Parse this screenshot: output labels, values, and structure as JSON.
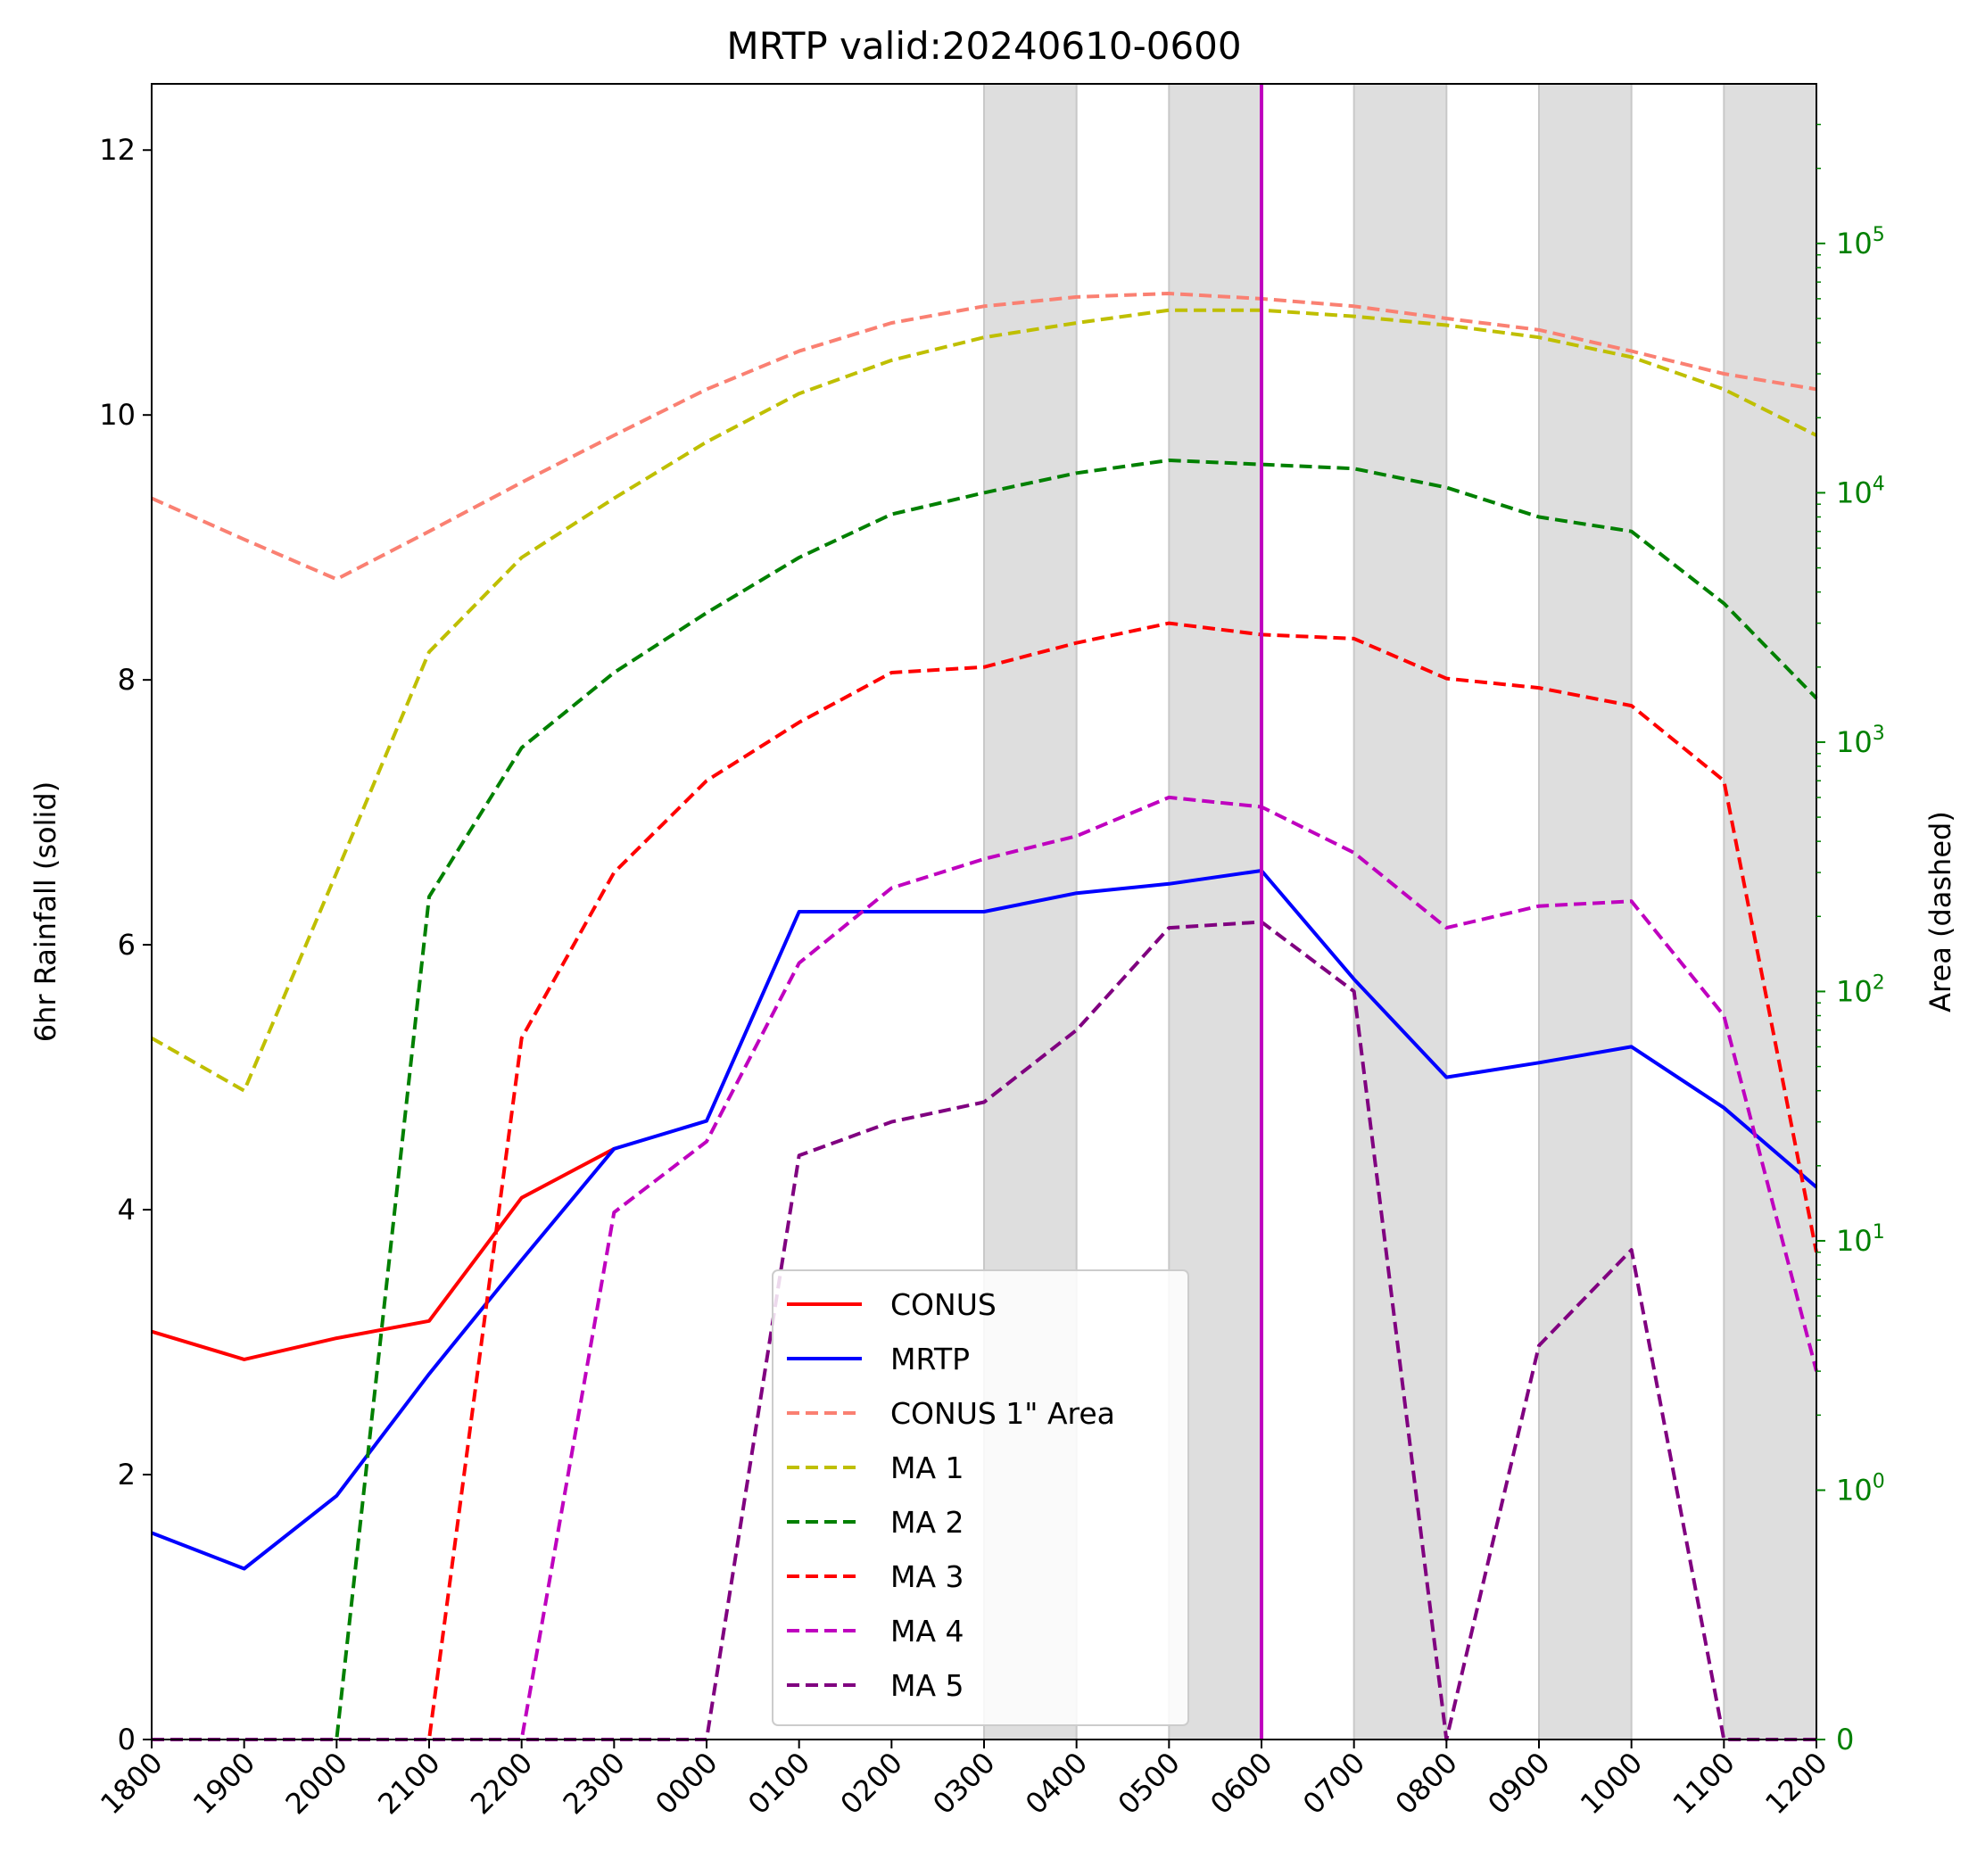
{
  "chart_data": {
    "type": "line",
    "title": "MRTP valid:20240610-0600",
    "ylabel": "6hr Rainfall (solid)",
    "y2label": "Area (dashed)",
    "x": [
      "1800",
      "1900",
      "2000",
      "2100",
      "2200",
      "2300",
      "0000",
      "0100",
      "0200",
      "0300",
      "0400",
      "0500",
      "0600",
      "0700",
      "0800",
      "0900",
      "1000",
      "1100",
      "1200"
    ],
    "ylim": [
      0,
      12.5
    ],
    "yticks": [
      "0",
      "2",
      "4",
      "6",
      "8",
      "10",
      "12"
    ],
    "y2_scale": "symlog",
    "y2ticks": [
      {
        "value": 0,
        "base": "0",
        "exp": ""
      },
      {
        "value": 1,
        "base": "10",
        "exp": "0"
      },
      {
        "value": 10,
        "base": "10",
        "exp": "1"
      },
      {
        "value": 100,
        "base": "10",
        "exp": "2"
      },
      {
        "value": 1000,
        "base": "10",
        "exp": "3"
      },
      {
        "value": 10000,
        "base": "10",
        "exp": "4"
      },
      {
        "value": 100000,
        "base": "10",
        "exp": "5"
      }
    ],
    "y2_color": "#008000",
    "shaded_spans": [
      [
        "0300",
        "0400"
      ],
      [
        "0500",
        "0600"
      ],
      [
        "0700",
        "0800"
      ],
      [
        "0900",
        "1000"
      ],
      [
        "1100",
        "1200"
      ]
    ],
    "vertical_line": {
      "x": "0600",
      "color": "#bf00bf"
    },
    "legend_position": "lower center",
    "series": [
      {
        "name": "CONUS",
        "axis": "left",
        "style": "solid",
        "color": "#ff0000",
        "values": [
          3.08,
          2.87,
          3.03,
          3.16,
          4.09,
          4.46,
          null,
          null,
          null,
          null,
          null,
          null,
          null,
          null,
          null,
          null,
          null,
          null,
          null
        ]
      },
      {
        "name": "MRTP",
        "axis": "left",
        "style": "solid",
        "color": "#0000ff",
        "values": [
          1.56,
          1.29,
          1.84,
          2.76,
          3.62,
          4.46,
          4.67,
          6.25,
          6.25,
          6.25,
          6.39,
          6.46,
          6.56,
          5.74,
          5.0,
          5.11,
          5.23,
          4.77,
          4.17
        ]
      },
      {
        "name": "CONUS 1\" Area",
        "axis": "right",
        "style": "dashed",
        "color": "#fa8072",
        "values": [
          9500,
          6500,
          4500,
          7000,
          11000,
          17000,
          26000,
          37000,
          48000,
          56000,
          61000,
          63000,
          60000,
          56000,
          50000,
          45000,
          37000,
          30000,
          26000
        ]
      },
      {
        "name": "MA 1",
        "axis": "right",
        "style": "dashed",
        "color": "#bfbf00",
        "values": [
          65,
          40,
          300,
          2300,
          5500,
          9500,
          16000,
          25000,
          34000,
          42000,
          48000,
          54000,
          54000,
          51000,
          47000,
          42000,
          35000,
          26000,
          17000
        ]
      },
      {
        "name": "MA 2",
        "axis": "right",
        "style": "dashed",
        "color": "#008000",
        "values": [
          0,
          0,
          0,
          240,
          950,
          1900,
          3300,
          5500,
          8200,
          10000,
          12000,
          13500,
          13000,
          12500,
          10500,
          8000,
          7000,
          3600,
          1500
        ]
      },
      {
        "name": "MA 3",
        "axis": "right",
        "style": "dashed",
        "color": "#ff0000",
        "values": [
          0,
          0,
          0,
          0,
          65,
          300,
          700,
          1200,
          1900,
          2000,
          2500,
          3000,
          2700,
          2600,
          1800,
          1650,
          1400,
          700,
          9
        ]
      },
      {
        "name": "MA 4",
        "axis": "right",
        "style": "dashed",
        "color": "#bf00bf",
        "values": [
          0,
          0,
          0,
          0,
          0,
          13,
          25,
          130,
          260,
          340,
          420,
          600,
          550,
          360,
          180,
          220,
          230,
          80,
          3
        ]
      },
      {
        "name": "MA 5",
        "axis": "right",
        "style": "dashed",
        "color": "#800080",
        "values": [
          0,
          0,
          0,
          0,
          0,
          0,
          0,
          22,
          30,
          36,
          70,
          180,
          190,
          100,
          0,
          3.8,
          9.2,
          0,
          0
        ]
      }
    ]
  }
}
